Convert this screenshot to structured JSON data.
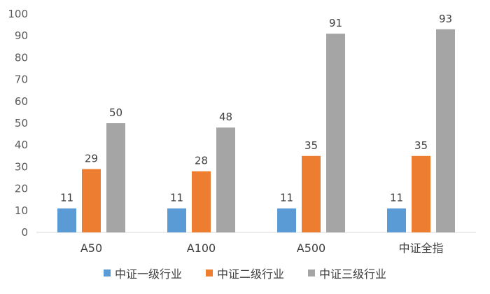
{
  "chart_data": {
    "type": "bar",
    "categories": [
      "A50",
      "A100",
      "A500",
      "中证全指"
    ],
    "series": [
      {
        "name": "中证一级行业",
        "values": [
          11,
          11,
          11,
          11
        ],
        "color": "#5B9BD5"
      },
      {
        "name": "中证二级行业",
        "values": [
          29,
          28,
          35,
          35
        ],
        "color": "#ED7D31"
      },
      {
        "name": "中证三级行业",
        "values": [
          50,
          48,
          91,
          93
        ],
        "color": "#A5A5A5"
      }
    ],
    "ylim": [
      0,
      100
    ],
    "yticks": [
      0,
      10,
      20,
      30,
      40,
      50,
      60,
      70,
      80,
      90,
      100
    ],
    "grid": false,
    "legend_position": "bottom",
    "data_labels": true
  }
}
